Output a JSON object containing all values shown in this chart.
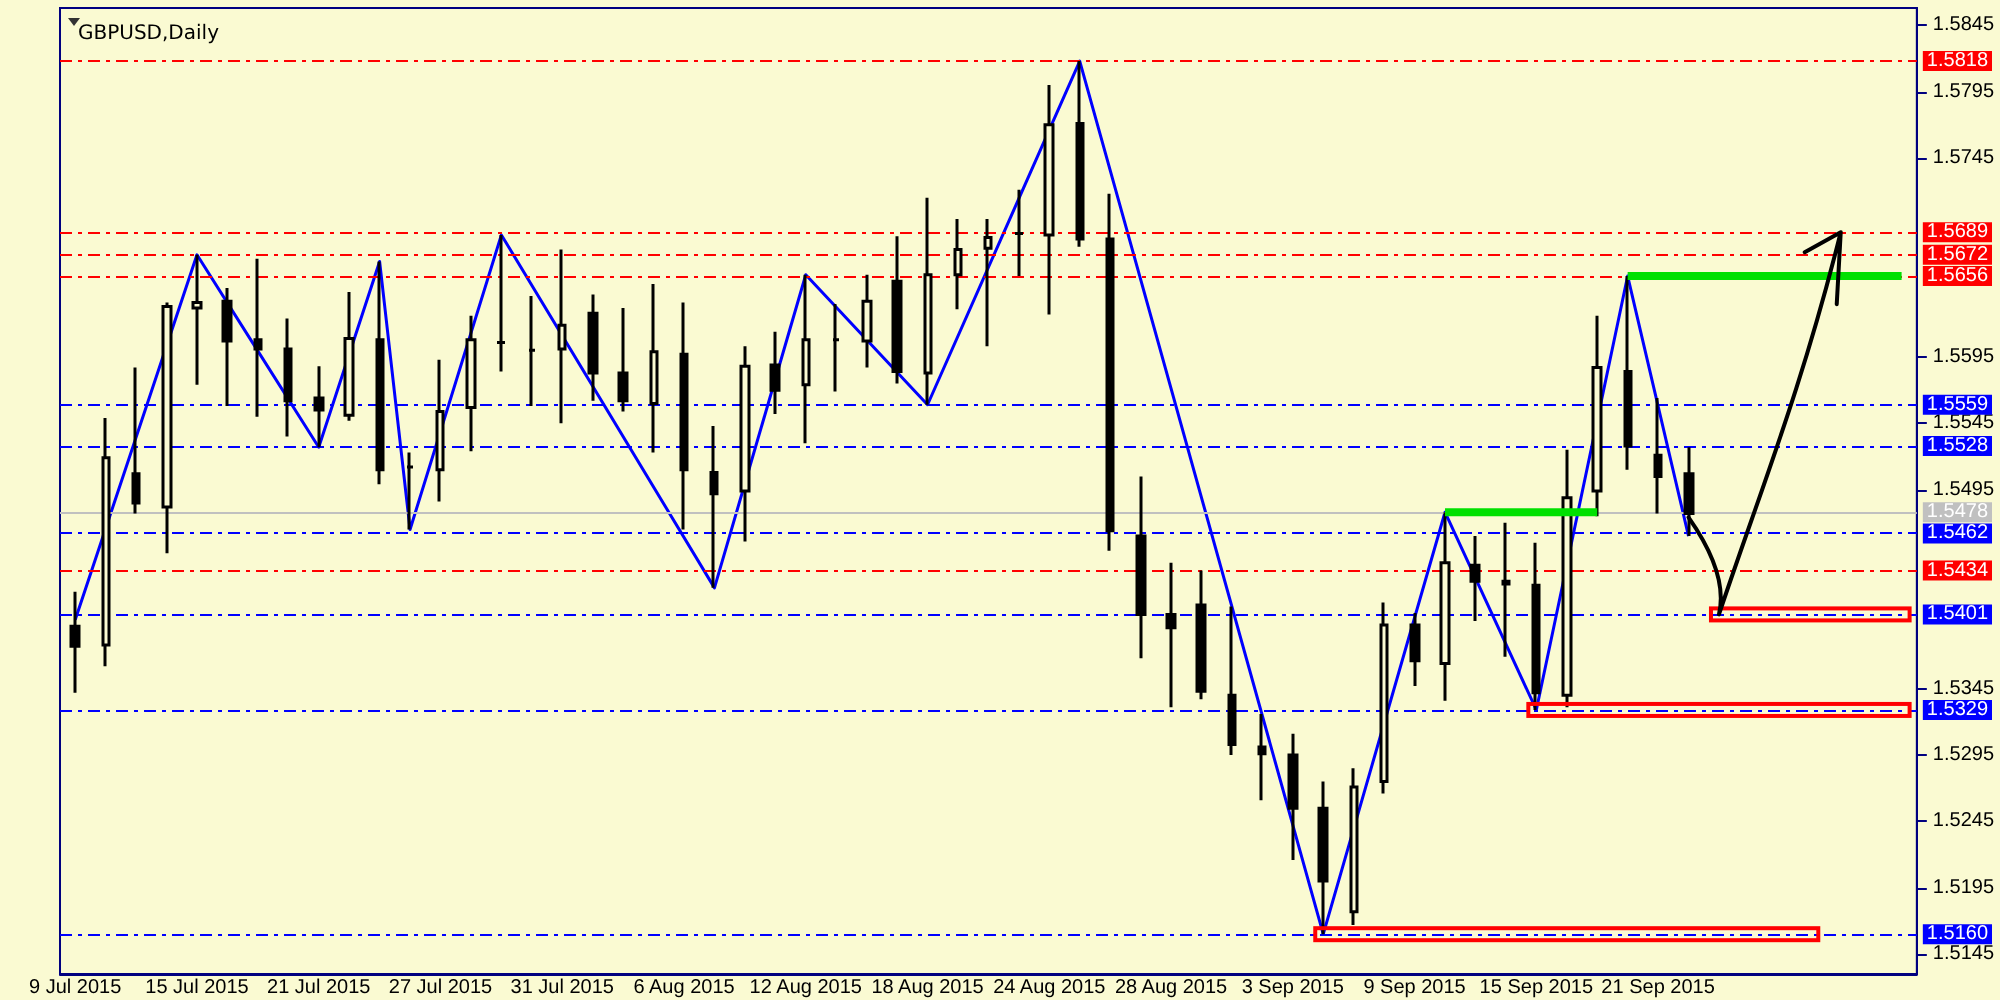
{
  "chart_data": {
    "type": "candlestick",
    "title": "GBPUSD,Daily",
    "color": "#000000",
    "categories": [
      "9 Jul 2015",
      null,
      null,
      null,
      "15 Jul 2015",
      null,
      null,
      null,
      "21 Jul 2015",
      null,
      null,
      null,
      "27 Jul 2015",
      null,
      null,
      null,
      "31 Jul 2015",
      null,
      null,
      null,
      "6 Aug 2015",
      null,
      null,
      null,
      "12 Aug 2015",
      null,
      null,
      null,
      "18 Aug 2015",
      null,
      null,
      null,
      "24 Aug 2015",
      null,
      null,
      null,
      "28 Aug 2015",
      null,
      null,
      null,
      "3 Sep 2015",
      null,
      null,
      null,
      "9 Sep 2015",
      null,
      null,
      null,
      "15 Sep 2015",
      null,
      null,
      null,
      "21 Sep 2015",
      null,
      null,
      null,
      null,
      null,
      null,
      null,
      null
    ],
    "ohlc": [
      [
        1.5392,
        1.5418,
        1.5342,
        1.5377
      ],
      [
        1.5378,
        1.5549,
        1.5362,
        1.5519
      ],
      [
        1.5507,
        1.5587,
        1.5477,
        1.5485
      ],
      [
        1.5482,
        1.5636,
        1.5447,
        1.5633
      ],
      [
        1.5632,
        1.5672,
        1.5574,
        1.5636
      ],
      [
        1.5637,
        1.5647,
        1.5558,
        1.5607
      ],
      [
        1.5608,
        1.5669,
        1.555,
        1.5601
      ],
      [
        1.5601,
        1.5624,
        1.5535,
        1.5562
      ],
      [
        1.5564,
        1.5588,
        1.5527,
        1.5555
      ],
      [
        1.5551,
        1.5644,
        1.5547,
        1.5609
      ],
      [
        1.5608,
        1.5667,
        1.5499,
        1.551
      ],
      [
        1.5512,
        1.5523,
        1.5465,
        1.5512
      ],
      [
        1.551,
        1.5593,
        1.5486,
        1.5554
      ],
      [
        1.5557,
        1.5626,
        1.5524,
        1.5608
      ],
      [
        1.5606,
        1.5687,
        1.5584,
        1.5606
      ],
      [
        1.56,
        1.5641,
        1.5558,
        1.56
      ],
      [
        1.5601,
        1.5676,
        1.5545,
        1.5619
      ],
      [
        1.5628,
        1.5642,
        1.5562,
        1.5583
      ],
      [
        1.5583,
        1.5632,
        1.5554,
        1.5562
      ],
      [
        1.556,
        1.565,
        1.5523,
        1.5599
      ],
      [
        1.5597,
        1.5636,
        1.5465,
        1.551
      ],
      [
        1.5508,
        1.5543,
        1.5421,
        1.5492
      ],
      [
        1.5494,
        1.5603,
        1.5456,
        1.5588
      ],
      [
        1.5589,
        1.5614,
        1.5552,
        1.557
      ],
      [
        1.5574,
        1.5657,
        1.553,
        1.5608
      ],
      [
        1.5608,
        1.5635,
        1.5569,
        1.5608
      ],
      [
        1.5607,
        1.5657,
        1.5587,
        1.5637
      ],
      [
        1.5652,
        1.5686,
        1.5575,
        1.5584
      ],
      [
        1.5583,
        1.5715,
        1.5559,
        1.5657
      ],
      [
        1.5657,
        1.5699,
        1.5631,
        1.5676
      ],
      [
        1.5677,
        1.5699,
        1.5603,
        1.5685
      ],
      [
        1.5688,
        1.5721,
        1.5656,
        1.5688
      ],
      [
        1.5687,
        1.58,
        1.5627,
        1.577
      ],
      [
        1.5771,
        1.5818,
        1.5678,
        1.5684
      ],
      [
        1.5684,
        1.5718,
        1.5449,
        1.5464
      ],
      [
        1.546,
        1.5505,
        1.5368,
        1.5401
      ],
      [
        1.5401,
        1.544,
        1.5331,
        1.5391
      ],
      [
        1.5408,
        1.5434,
        1.5337,
        1.5343
      ],
      [
        1.534,
        1.5407,
        1.5295,
        1.5303
      ],
      [
        1.5301,
        1.5326,
        1.5261,
        1.5296
      ],
      [
        1.5295,
        1.5311,
        1.5216,
        1.5255
      ],
      [
        1.5255,
        1.5275,
        1.516,
        1.52
      ],
      [
        1.5177,
        1.5285,
        1.5167,
        1.5271
      ],
      [
        1.5275,
        1.541,
        1.5266,
        1.5393
      ],
      [
        1.5393,
        1.5402,
        1.5347,
        1.5366
      ],
      [
        1.5364,
        1.5478,
        1.5336,
        1.544
      ],
      [
        1.5438,
        1.546,
        1.5396,
        1.5426
      ],
      [
        1.5426,
        1.547,
        1.5369,
        1.5424
      ],
      [
        1.5423,
        1.5455,
        1.5329,
        1.5342
      ],
      [
        1.534,
        1.5525,
        1.5331,
        1.5489
      ],
      [
        1.5494,
        1.5626,
        1.5475,
        1.5587
      ],
      [
        1.5584,
        1.5656,
        1.551,
        1.5528
      ],
      [
        1.5521,
        1.5564,
        1.5477,
        1.5505
      ],
      [
        1.5507,
        1.5527,
        1.546,
        1.5477
      ],
      null,
      null,
      null,
      null,
      null,
      null,
      null
    ],
    "series": [
      {
        "type": "line",
        "color": "#0000ff",
        "marker": "none",
        "values": [
          1.5397,
          null,
          null,
          null,
          1.5672,
          null,
          null,
          null,
          1.5527,
          null,
          1.5667,
          1.5465,
          null,
          null,
          1.5687,
          null,
          null,
          null,
          null,
          null,
          null,
          1.5421,
          null,
          null,
          1.5657,
          null,
          null,
          null,
          1.5559,
          null,
          null,
          null,
          null,
          1.5818,
          null,
          null,
          null,
          null,
          null,
          null,
          null,
          1.516,
          null,
          null,
          null,
          1.5478,
          null,
          null,
          1.5329,
          null,
          null,
          1.5656,
          null,
          1.546,
          null,
          null,
          null,
          null,
          null,
          null,
          null
        ]
      }
    ],
    "ylim": [
      1.513,
      1.5858
    ],
    "yticks": [
      1.5145,
      1.5195,
      1.5245,
      1.5295,
      1.5345,
      1.5495,
      1.5545,
      1.5595,
      1.5745,
      1.5795,
      1.5845
    ],
    "ref_lines": [
      {
        "axis": "y",
        "value": 1.5818,
        "label": "1.5818",
        "color": "#ff0000",
        "line_style": "dashed"
      },
      {
        "axis": "y",
        "value": 1.5689,
        "label": "1.5689",
        "color": "#ff0000",
        "line_style": "dashed"
      },
      {
        "axis": "y",
        "value": 1.5672,
        "label": "1.5672",
        "color": "#ff0000",
        "line_style": "dashed"
      },
      {
        "axis": "y",
        "value": 1.5656,
        "label": "1.5656",
        "color": "#ff0000",
        "line_style": "dashed"
      },
      {
        "axis": "y",
        "value": 1.5559,
        "label": "1.5559",
        "color": "#0000ff",
        "line_style": "dashed"
      },
      {
        "axis": "y",
        "value": 1.5528,
        "label": "1.5528",
        "color": "#0000ff",
        "line_style": "dashed"
      },
      {
        "axis": "y",
        "value": 1.5478,
        "label": "1.5478",
        "color": "#c0c0c0",
        "line_style": "solid"
      },
      {
        "axis": "y",
        "value": 1.5462,
        "label": "1.5462",
        "color": "#0000ff",
        "line_style": "dashed"
      },
      {
        "axis": "y",
        "value": 1.5434,
        "label": "1.5434",
        "color": "#ff0000",
        "line_style": "dashed"
      },
      {
        "axis": "y",
        "value": 1.5401,
        "label": "1.5401",
        "color": "#0000ff",
        "line_style": "dashed"
      },
      {
        "axis": "y",
        "value": 1.5329,
        "label": "1.5329",
        "color": "#0000ff",
        "line_style": "dashed"
      },
      {
        "axis": "y",
        "value": 1.516,
        "label": "1.5160",
        "color": "#0000ff",
        "line_style": "dashed"
      }
    ]
  }
}
